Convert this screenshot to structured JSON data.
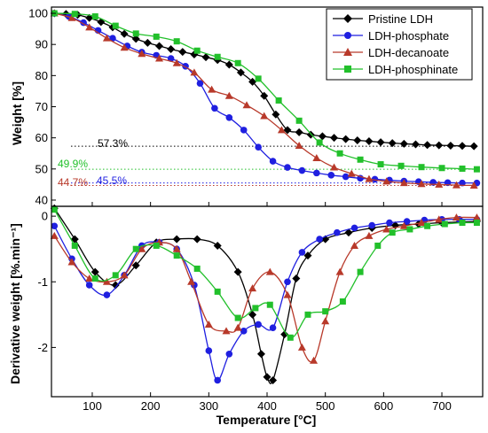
{
  "chart_data": [
    {
      "type": "line",
      "ylabel": "Weight [%]",
      "xlim": [
        30,
        770
      ],
      "ylim": [
        38,
        102
      ],
      "yticks": [
        40,
        50,
        60,
        70,
        80,
        90,
        100
      ],
      "grid": false,
      "legend_position": "top-right",
      "series": [
        {
          "name": "Pristine LDH",
          "color": "#000000",
          "marker": "diamond",
          "x": [
            35,
            55,
            75,
            95,
            115,
            135,
            155,
            175,
            195,
            215,
            235,
            255,
            275,
            295,
            315,
            335,
            355,
            375,
            395,
            415,
            435,
            455,
            475,
            495,
            515,
            535,
            555,
            575,
            595,
            615,
            635,
            655,
            675,
            695,
            715,
            735,
            755
          ],
          "values": [
            100,
            99.8,
            99.5,
            98.5,
            97.2,
            95.5,
            93.4,
            91.8,
            90.5,
            89.5,
            88.5,
            87.6,
            86.8,
            85.9,
            85.0,
            83.5,
            81.0,
            78.0,
            73.5,
            67.5,
            62.5,
            61.8,
            61.0,
            60.5,
            60.0,
            59.6,
            59.2,
            58.9,
            58.6,
            58.3,
            58.1,
            57.9,
            57.7,
            57.6,
            57.5,
            57.4,
            57.3
          ]
        },
        {
          "name": "LDH-phosphate",
          "color": "#1f1fe0",
          "marker": "circle",
          "x": [
            35,
            60,
            85,
            110,
            135,
            160,
            185,
            210,
            235,
            260,
            285,
            310,
            335,
            360,
            385,
            410,
            435,
            460,
            485,
            510,
            535,
            560,
            585,
            610,
            635,
            660,
            685,
            710,
            735,
            760
          ],
          "values": [
            100,
            99.0,
            97.0,
            94.5,
            92.0,
            89.5,
            87.5,
            86.5,
            85.5,
            83.0,
            77.5,
            69.5,
            66.5,
            62.5,
            57.0,
            52.5,
            50.5,
            49.5,
            48.7,
            48.0,
            47.5,
            47.0,
            46.7,
            46.4,
            46.1,
            45.9,
            45.7,
            45.6,
            45.5,
            45.5
          ]
        },
        {
          "name": "LDH-decanoate",
          "color": "#b8392a",
          "marker": "triangle",
          "x": [
            35,
            65,
            95,
            125,
            155,
            185,
            215,
            245,
            275,
            305,
            335,
            365,
            395,
            425,
            455,
            485,
            515,
            545,
            575,
            605,
            635,
            665,
            695,
            725,
            755
          ],
          "values": [
            100,
            98.5,
            95.5,
            92.0,
            89.0,
            87.0,
            85.5,
            84.0,
            81.0,
            75.5,
            73.5,
            70.5,
            67.0,
            62.5,
            57.5,
            53.5,
            50.5,
            48.5,
            46.8,
            46.0,
            45.5,
            45.2,
            45.0,
            44.8,
            44.7
          ]
        },
        {
          "name": "LDH-phosphinate",
          "color": "#22c02b",
          "marker": "square",
          "x": [
            35,
            70,
            105,
            140,
            175,
            210,
            245,
            280,
            315,
            350,
            385,
            420,
            455,
            490,
            525,
            560,
            595,
            630,
            665,
            700,
            735,
            760
          ],
          "values": [
            100,
            99.8,
            99.0,
            96.0,
            93.5,
            92.5,
            91.0,
            88.0,
            86.0,
            84.0,
            79.0,
            72.0,
            65.5,
            58.5,
            55.0,
            53.0,
            51.5,
            51.0,
            50.6,
            50.3,
            50.1,
            49.9
          ]
        }
      ],
      "reference_lines": [
        {
          "label": "57.3%",
          "value": 57.3,
          "color": "#000000"
        },
        {
          "label": "49.9%",
          "value": 49.9,
          "color": "#22c02b"
        },
        {
          "label": "44.7%",
          "value": 44.7,
          "color": "#b8392a"
        },
        {
          "label": "45.5%",
          "value": 45.5,
          "color": "#1f1fe0"
        }
      ]
    },
    {
      "type": "line",
      "xlabel": "Temperature [°C]",
      "ylabel": "Derivative weight [%.min⁻¹]",
      "xlim": [
        30,
        770
      ],
      "ylim": [
        -2.75,
        0.15
      ],
      "xticks": [
        100,
        200,
        300,
        400,
        500,
        600,
        700
      ],
      "yticks": [
        0,
        -1,
        -2
      ],
      "grid": false,
      "series": [
        {
          "name": "Pristine LDH",
          "color": "#000000",
          "marker": "diamond",
          "x": [
            35,
            70,
            105,
            140,
            175,
            210,
            245,
            280,
            315,
            350,
            375,
            390,
            400,
            410,
            430,
            450,
            470,
            500,
            540,
            580,
            620,
            660,
            700,
            760
          ],
          "values": [
            0.12,
            -0.35,
            -0.85,
            -1.05,
            -0.75,
            -0.4,
            -0.35,
            -0.35,
            -0.45,
            -0.85,
            -1.5,
            -2.1,
            -2.45,
            -2.5,
            -1.8,
            -0.95,
            -0.6,
            -0.35,
            -0.25,
            -0.18,
            -0.14,
            -0.12,
            -0.1,
            -0.08
          ]
        },
        {
          "name": "LDH-phosphate",
          "color": "#1f1fe0",
          "marker": "circle",
          "x": [
            35,
            65,
            95,
            125,
            155,
            185,
            215,
            245,
            275,
            300,
            315,
            335,
            360,
            385,
            410,
            435,
            460,
            490,
            520,
            550,
            580,
            610,
            640,
            670,
            700,
            730,
            760
          ],
          "values": [
            -0.15,
            -0.65,
            -1.05,
            -1.2,
            -0.9,
            -0.45,
            -0.4,
            -0.5,
            -1.05,
            -2.05,
            -2.5,
            -2.1,
            -1.75,
            -1.65,
            -1.7,
            -1.0,
            -0.55,
            -0.35,
            -0.25,
            -0.18,
            -0.14,
            -0.1,
            -0.08,
            -0.06,
            -0.05,
            -0.05,
            -0.05
          ]
        },
        {
          "name": "LDH-decanoate",
          "color": "#b8392a",
          "marker": "triangle",
          "x": [
            35,
            65,
            95,
            125,
            155,
            185,
            215,
            245,
            270,
            300,
            330,
            350,
            375,
            405,
            435,
            460,
            480,
            500,
            525,
            550,
            575,
            605,
            635,
            665,
            695,
            725,
            760
          ],
          "values": [
            -0.3,
            -0.7,
            -0.95,
            -1.0,
            -0.9,
            -0.5,
            -0.4,
            -0.5,
            -1.0,
            -1.65,
            -1.75,
            -1.7,
            -1.1,
            -0.85,
            -1.2,
            -2.0,
            -2.2,
            -1.6,
            -0.85,
            -0.45,
            -0.3,
            -0.2,
            -0.15,
            -0.1,
            -0.05,
            -0.02,
            -0.02
          ]
        },
        {
          "name": "LDH-phosphinate",
          "color": "#22c02b",
          "marker": "square",
          "x": [
            35,
            70,
            105,
            140,
            175,
            210,
            245,
            280,
            315,
            350,
            380,
            405,
            440,
            470,
            500,
            530,
            560,
            590,
            615,
            645,
            675,
            705,
            735,
            760
          ],
          "values": [
            0.1,
            -0.45,
            -0.95,
            -0.9,
            -0.5,
            -0.45,
            -0.6,
            -0.8,
            -1.15,
            -1.55,
            -1.4,
            -1.35,
            -1.85,
            -1.5,
            -1.45,
            -1.3,
            -0.85,
            -0.45,
            -0.25,
            -0.2,
            -0.15,
            -0.12,
            -0.1,
            -0.1
          ]
        }
      ]
    }
  ]
}
